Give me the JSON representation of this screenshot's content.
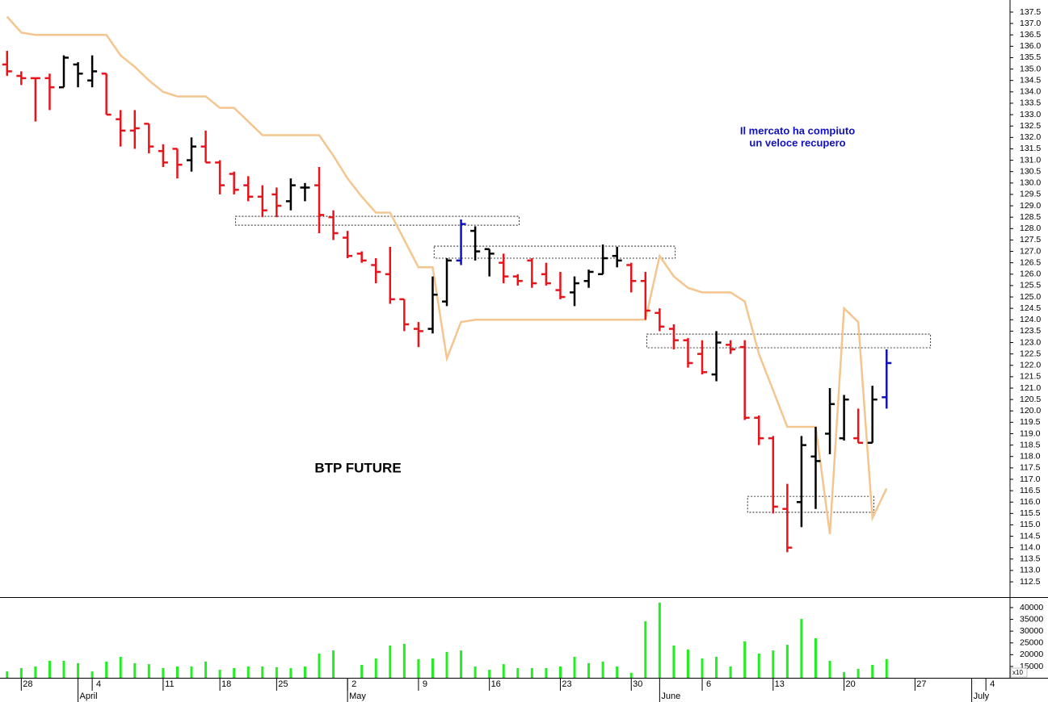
{
  "chart_data": [
    {
      "type": "ohlc",
      "title": "BTP FUTURE",
      "annotation": [
        "Il mercato ha compiuto",
        "un veloce recupero"
      ],
      "xlim": [
        -0.5,
        70.7
      ],
      "ylim": [
        111.83,
        138.03
      ],
      "yticks": [
        112.5,
        {
          "value": 113,
          "label": "113.0"
        },
        113.5,
        {
          "value": 114,
          "label": "114.0"
        },
        114.5,
        {
          "value": 115,
          "label": "115.0"
        },
        115.5,
        {
          "value": 116,
          "label": "116.0"
        },
        116.5,
        {
          "value": 117,
          "label": "117.0"
        },
        117.5,
        {
          "value": 118,
          "label": "118.0"
        },
        118.5,
        {
          "value": 119,
          "label": "119.0"
        },
        119.5,
        {
          "value": 120,
          "label": "120.0"
        },
        120.5,
        {
          "value": 121,
          "label": "121.0"
        },
        121.5,
        {
          "value": 122,
          "label": "122.0"
        },
        122.5,
        {
          "value": 123,
          "label": "123.0"
        },
        123.5,
        {
          "value": 124,
          "label": "124.0"
        },
        124.5,
        {
          "value": 125,
          "label": "125.0"
        },
        125.5,
        {
          "value": 126,
          "label": "126.0"
        },
        126.5,
        {
          "value": 127,
          "label": "127.0"
        },
        127.5,
        {
          "value": 128,
          "label": "128.0"
        },
        128.5,
        {
          "value": 129,
          "label": "129.0"
        },
        129.5,
        {
          "value": 130,
          "label": "130.0"
        },
        130.5,
        {
          "value": 131,
          "label": "131.0"
        },
        131.5,
        {
          "value": 132,
          "label": "132.0"
        },
        132.5,
        {
          "value": 133,
          "label": "133.0"
        },
        133.5,
        {
          "value": 134,
          "label": "134.0"
        },
        134.5,
        {
          "value": 135,
          "label": "135.0"
        },
        135.5,
        {
          "value": 136,
          "label": "136.0"
        },
        136.5,
        {
          "value": 137,
          "label": "137.0"
        },
        137.5
      ],
      "xticks": [
        {
          "value": 1,
          "label": "28"
        },
        {
          "value": 6,
          "label": "4"
        },
        {
          "value": 11,
          "label": "11"
        },
        {
          "value": 15,
          "label": "18"
        },
        {
          "value": 19,
          "label": "25"
        },
        {
          "value": 24,
          "label": "2"
        },
        {
          "value": 29,
          "label": "9"
        },
        {
          "value": 34,
          "label": "16"
        },
        {
          "value": 39,
          "label": "23"
        },
        {
          "value": 44,
          "label": "30"
        },
        {
          "value": 49,
          "label": "6"
        },
        {
          "value": 54,
          "label": "13"
        },
        {
          "value": 59,
          "label": "20"
        },
        {
          "value": 64,
          "label": "27"
        },
        {
          "value": 69,
          "label": "4"
        }
      ],
      "month_ticks": [
        {
          "value": 5,
          "label": "April"
        },
        {
          "value": 24,
          "label": "May"
        },
        {
          "value": 46,
          "label": "June"
        },
        {
          "value": 68,
          "label": "July"
        }
      ],
      "open": [
        135.2,
        134.7,
        134.6,
        134.6,
        134.2,
        135.2,
        134.5,
        134.8,
        132.8,
        132.3,
        132.6,
        131.4,
        131.5,
        131.0,
        131.6,
        130.9,
        130.4,
        129.9,
        129.4,
        129.5,
        129.2,
        129.8,
        129.9,
        128.5,
        127.6,
        126.9,
        126.4,
        126.0,
        124.9,
        123.6,
        123.6,
        124.8,
        126.6,
        127.9,
        127.1,
        126.5,
        125.9,
        126.6,
        126.0,
        125.3,
        125.2,
        125.7,
        126.0,
        126.8,
        126.4,
        125.7,
        124.3,
        123.6,
        123.1,
        122.5,
        121.6,
        122.9,
        122.8,
        119.7,
        118.8,
        115.7,
        116.0,
        118.0,
        119.0,
        118.8,
        118.8,
        118.6,
        120.6
      ],
      "high": [
        135.8,
        134.9,
        134.6,
        134.8,
        135.6,
        135.3,
        135.6,
        134.8,
        133.2,
        133.2,
        132.6,
        131.7,
        131.5,
        132.0,
        132.3,
        131.0,
        130.5,
        130.3,
        129.9,
        129.8,
        130.2,
        130.0,
        130.7,
        128.8,
        127.9,
        127.0,
        126.7,
        127.2,
        124.9,
        123.9,
        125.9,
        126.7,
        128.4,
        128.1,
        127.1,
        126.9,
        126.0,
        126.7,
        126.5,
        126.1,
        125.9,
        126.2,
        127.3,
        127.2,
        126.5,
        126.1,
        124.5,
        123.8,
        123.2,
        123.1,
        123.5,
        123.1,
        123.1,
        119.8,
        118.9,
        116.8,
        118.9,
        119.3,
        121.0,
        120.7,
        120.1,
        121.1,
        122.7
      ],
      "low": [
        134.7,
        134.3,
        132.7,
        133.2,
        134.2,
        134.2,
        134.2,
        133.0,
        131.6,
        131.5,
        131.3,
        130.7,
        130.2,
        130.5,
        130.9,
        129.5,
        129.5,
        129.2,
        128.5,
        128.5,
        128.8,
        129.2,
        127.8,
        127.5,
        126.7,
        126.5,
        125.6,
        124.7,
        123.5,
        122.8,
        123.4,
        124.6,
        126.4,
        126.6,
        125.9,
        125.6,
        125.5,
        125.4,
        125.5,
        124.9,
        124.6,
        125.4,
        126.0,
        126.3,
        125.2,
        124.0,
        123.5,
        122.7,
        121.9,
        121.6,
        121.3,
        122.5,
        119.6,
        118.5,
        115.5,
        113.8,
        114.9,
        115.7,
        118.1,
        118.7,
        118.6,
        118.6,
        120.1
      ],
      "close": [
        134.9,
        134.6,
        134.6,
        134.2,
        135.5,
        134.8,
        134.9,
        133.0,
        132.3,
        132.4,
        131.6,
        130.9,
        130.8,
        131.6,
        130.9,
        129.9,
        129.7,
        129.4,
        128.8,
        129.0,
        129.9,
        129.8,
        128.6,
        127.8,
        126.8,
        126.6,
        126.1,
        124.9,
        123.8,
        123.5,
        125.1,
        126.6,
        128.2,
        127.0,
        126.9,
        125.9,
        125.7,
        125.6,
        125.6,
        125.0,
        125.6,
        126.1,
        126.7,
        126.6,
        125.7,
        124.4,
        123.7,
        123.1,
        122.1,
        121.7,
        123.0,
        122.7,
        119.7,
        118.8,
        115.8,
        114.0,
        118.5,
        117.8,
        120.3,
        120.5,
        118.6,
        120.5,
        122.1
      ],
      "bar_colors": [
        "#e8141c",
        "#e8141c",
        "#e8141c",
        "#e8141c",
        "#000000",
        "#000000",
        "#000000",
        "#e8141c",
        "#e8141c",
        "#e8141c",
        "#e8141c",
        "#e8141c",
        "#e8141c",
        "#000000",
        "#e8141c",
        "#e8141c",
        "#e8141c",
        "#e8141c",
        "#e8141c",
        "#e8141c",
        "#000000",
        "#000000",
        "#e8141c",
        "#e8141c",
        "#e8141c",
        "#e8141c",
        "#e8141c",
        "#e8141c",
        "#e8141c",
        "#e8141c",
        "#000000",
        "#000000",
        "#1010c0",
        "#000000",
        "#000000",
        "#e8141c",
        "#e8141c",
        "#e8141c",
        "#e8141c",
        "#e8141c",
        "#000000",
        "#000000",
        "#000000",
        "#000000",
        "#e8141c",
        "#e8141c",
        "#e8141c",
        "#e8141c",
        "#e8141c",
        "#e8141c",
        "#000000",
        "#e8141c",
        "#e8141c",
        "#e8141c",
        "#e8141c",
        "#e8141c",
        "#000000",
        "#000000",
        "#000000",
        "#000000",
        "#e8141c",
        "#000000",
        "#1010c0"
      ],
      "line": {
        "color": "#f5c58f",
        "values": [
          137.3,
          136.6,
          136.5,
          136.5,
          136.5,
          136.5,
          136.5,
          136.5,
          135.6,
          135.1,
          134.5,
          134.0,
          133.8,
          133.8,
          133.8,
          133.3,
          133.3,
          132.7,
          132.1,
          132.1,
          132.1,
          132.1,
          132.1,
          131.2,
          130.2,
          129.4,
          128.7,
          128.7,
          127.5,
          126.3,
          126.3,
          122.3,
          123.9,
          124.0,
          124.0,
          124.0,
          124.0,
          124.0,
          124.0,
          124.0,
          124.0,
          124.0,
          124.0,
          124.0,
          124.0,
          124.0,
          126.8,
          125.9,
          125.4,
          125.2,
          125.2,
          125.2,
          124.8,
          122.5,
          120.9,
          119.3,
          119.3,
          119.3,
          114.6,
          124.5,
          123.9,
          115.3,
          116.6
        ]
      },
      "zones": [
        {
          "x": [
            16.1,
            36.1
          ],
          "y": [
            128.15,
            128.54
          ]
        },
        {
          "x": [
            30.1,
            47.1
          ],
          "y": [
            126.7,
            127.23
          ]
        },
        {
          "x": [
            45.1,
            65.1
          ],
          "y": [
            122.77,
            123.37
          ]
        },
        {
          "x": [
            52.2,
            61.1
          ],
          "y": [
            115.55,
            116.25
          ]
        }
      ]
    },
    {
      "type": "bar",
      "color": "#22ee22",
      "unit_label": "x10",
      "ylim": [
        10200,
        44100
      ],
      "yticks": [
        15000,
        20000,
        25000,
        30000,
        35000,
        40000
      ],
      "values": [
        12900,
        14300,
        15000,
        17400,
        17400,
        16400,
        12900,
        17100,
        19100,
        16400,
        16000,
        14300,
        15000,
        15000,
        17100,
        13600,
        14300,
        15000,
        15000,
        14700,
        14300,
        15000,
        20500,
        21800,
        null,
        15700,
        18400,
        23900,
        24600,
        18100,
        18400,
        21200,
        21800,
        15000,
        13600,
        16000,
        14300,
        14300,
        14300,
        15000,
        19100,
        16400,
        17100,
        15000,
        12300,
        34200,
        42100,
        23900,
        22200,
        18400,
        19100,
        15000,
        25600,
        20500,
        21800,
        24200,
        35200,
        27000,
        17400,
        12600,
        14000,
        15700,
        18100
      ]
    }
  ]
}
